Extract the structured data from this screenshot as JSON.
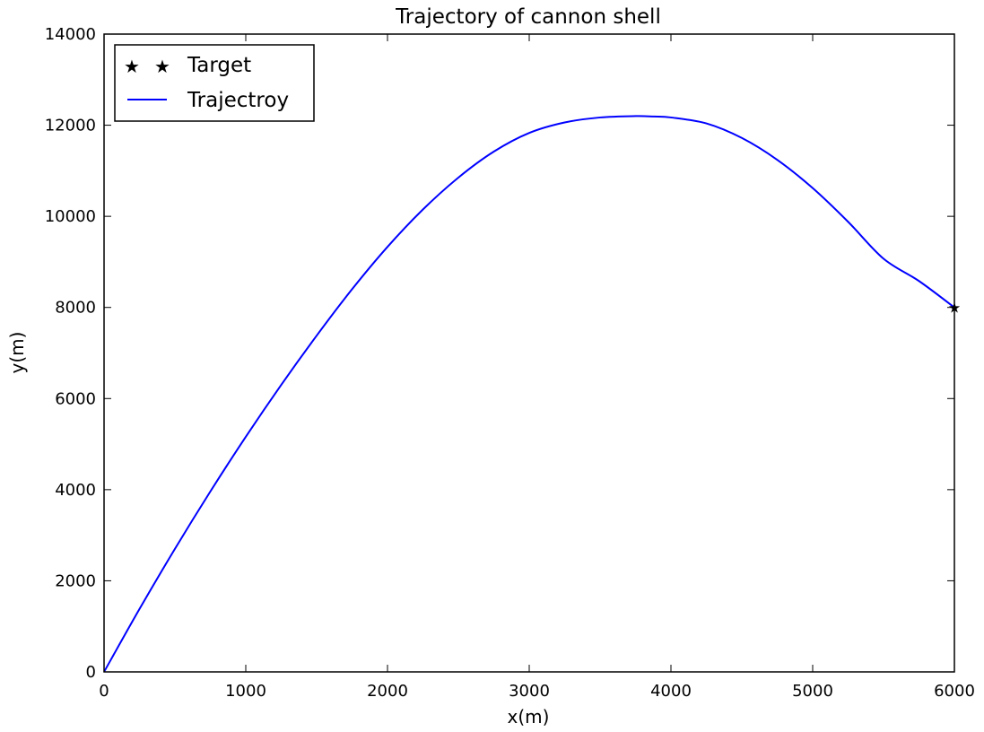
{
  "chart_data": {
    "type": "line",
    "title": "Trajectory of cannon shell",
    "xlabel": "x(m)",
    "ylabel": "y(m)",
    "xlim": [
      0,
      6000
    ],
    "ylim": [
      0,
      14000
    ],
    "xticks": [
      0,
      1000,
      2000,
      3000,
      4000,
      5000,
      6000
    ],
    "yticks": [
      0,
      2000,
      4000,
      6000,
      8000,
      10000,
      12000,
      14000
    ],
    "grid": false,
    "legend_position": "top-left",
    "series": [
      {
        "name": "Trajectroy",
        "style": "line",
        "color": "#0000ff",
        "x": [
          0,
          250,
          500,
          750,
          1000,
          1250,
          1500,
          1750,
          2000,
          2250,
          2500,
          2750,
          3000,
          3250,
          3500,
          3750,
          3880,
          4000,
          4250,
          4500,
          4750,
          5000,
          5250,
          5500,
          5750,
          6000
        ],
        "y": [
          0,
          1380,
          2700,
          3960,
          5160,
          6300,
          7380,
          8400,
          9330,
          10150,
          10850,
          11420,
          11830,
          12060,
          12170,
          12200,
          12190,
          12170,
          12040,
          11720,
          11240,
          10620,
          9880,
          9070,
          8580,
          8000
        ]
      },
      {
        "name": "Target",
        "style": "marker",
        "marker": "star",
        "color": "#000000",
        "x": [
          6000
        ],
        "y": [
          8000
        ]
      }
    ]
  }
}
